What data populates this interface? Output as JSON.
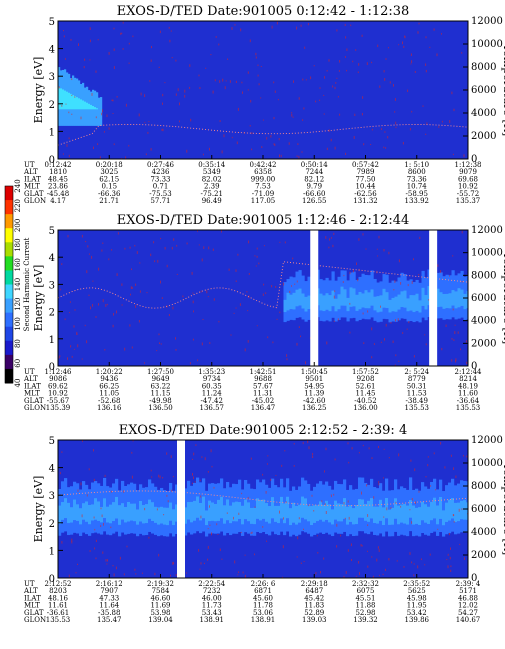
{
  "chart_data": [
    {
      "type": "heatmap",
      "title": "EXOS-D/TED   Date:901005   0:12:42 - 1:12:38",
      "ylabel": "Energy [eV]",
      "y2label": "Temperature [K]",
      "ylim": [
        0,
        5
      ],
      "y2lim": [
        0,
        12000
      ],
      "yticks": [
        "0",
        "1",
        "2",
        "3",
        "4",
        "5"
      ],
      "y2ticks": [
        "0",
        "2000",
        "4000",
        "6000",
        "8000",
        "10000",
        "12000"
      ],
      "gaps": [],
      "bands": [],
      "early_burst": true,
      "rows": [
        {
          "label": "UT",
          "values": [
            "0:12:42",
            "0:20:18",
            "0:27:46",
            "0:35:14",
            "0:42:42",
            "0:50:14",
            "0:57:42",
            "1: 5:10",
            "1:12:38"
          ]
        },
        {
          "label": "ALT",
          "values": [
            "1810",
            "3025",
            "4236",
            "5349",
            "6358",
            "7244",
            "7989",
            "8600",
            "9079"
          ]
        },
        {
          "label": "ILAT",
          "values": [
            "48.45",
            "62.15",
            "73.33",
            "82.02",
            "999.00",
            "82.12",
            "77.50",
            "73.36",
            "69.68"
          ]
        },
        {
          "label": "MLT",
          "values": [
            "23.86",
            "0.15",
            "0.71",
            "2.39",
            "7.53",
            "9.79",
            "10.44",
            "10.74",
            "10.92"
          ]
        },
        {
          "label": "GLAT",
          "values": [
            "-45.48",
            "-66.36",
            "-75.53",
            "-75.21",
            "-71.09",
            "-66.60",
            "-62.56",
            "-58.95",
            "-55.72"
          ]
        },
        {
          "label": "GLON",
          "values": [
            "4.17",
            "21.71",
            "57.71",
            "96.49",
            "117.05",
            "126.55",
            "131.32",
            "133.92",
            "135.37"
          ]
        }
      ]
    },
    {
      "type": "heatmap",
      "title": "EXOS-D/TED   Date:901005   1:12:46 - 2:12:44",
      "ylabel": "Energy [eV]",
      "y2label": "Temperature [K]",
      "ylim": [
        0,
        5
      ],
      "y2lim": [
        0,
        12000
      ],
      "yticks": [
        "0",
        "1",
        "2",
        "3",
        "4",
        "5"
      ],
      "y2ticks": [
        "0",
        "2000",
        "4000",
        "6000",
        "8000",
        "10000",
        "12000"
      ],
      "gaps": [
        0.625,
        0.915
      ],
      "bands": [
        {
          "from": 0.55,
          "to": 1.0,
          "lo": 1.7,
          "hi": 3.3
        }
      ],
      "early_burst": false,
      "rows": [
        {
          "label": "UT",
          "values": [
            "1:12:46",
            "1:20:22",
            "1:27:50",
            "1:35:23",
            "1:42:51",
            "1:50:45",
            "1:57:52",
            "2: 5:24",
            "2:12:44"
          ]
        },
        {
          "label": "ALT",
          "values": [
            "9086",
            "9436",
            "9649",
            "9734",
            "9688",
            "9501",
            "9208",
            "8779",
            "8214"
          ]
        },
        {
          "label": "ILAT",
          "values": [
            "69.62",
            "66.25",
            "63.22",
            "60.35",
            "57.67",
            "54.95",
            "52.61",
            "50.31",
            "48.19"
          ]
        },
        {
          "label": "MLT",
          "values": [
            "10.92",
            "11.05",
            "11.15",
            "11.24",
            "11.31",
            "11.39",
            "11.45",
            "11.53",
            "11.60"
          ]
        },
        {
          "label": "GLAT",
          "values": [
            "-55.67",
            "-52.68",
            "-49.98",
            "-47.42",
            "-45.02",
            "-42.60",
            "-40.52",
            "-38.49",
            "-36.64"
          ]
        },
        {
          "label": "GLON",
          "values": [
            "135.39",
            "136.16",
            "136.50",
            "136.57",
            "136.47",
            "136.25",
            "136.00",
            "135.53",
            "135.53"
          ]
        }
      ]
    },
    {
      "type": "heatmap",
      "title": "EXOS-D/TED   Date:901005   2:12:52 - 2:39: 4",
      "ylabel": "Energy [eV]",
      "y2label": "Temperature [K]",
      "ylim": [
        0,
        5
      ],
      "y2lim": [
        0,
        12000
      ],
      "yticks": [
        "0",
        "1",
        "2",
        "3",
        "4",
        "5"
      ],
      "y2ticks": [
        "0",
        "2000",
        "4000",
        "6000",
        "8000",
        "10000",
        "12000"
      ],
      "gaps": [
        0.3
      ],
      "bands": [
        {
          "from": 0.0,
          "to": 1.0,
          "lo": 1.6,
          "hi": 3.4
        }
      ],
      "early_burst": false,
      "rows": [
        {
          "label": "UT",
          "values": [
            "2:12:52",
            "2:16:12",
            "2:19:32",
            "2:22:54",
            "2:26: 6",
            "2:29:18",
            "2:32:32",
            "2:35:52",
            "2:39: 4"
          ]
        },
        {
          "label": "ALT",
          "values": [
            "8203",
            "7907",
            "7584",
            "7232",
            "6871",
            "6487",
            "6075",
            "5625",
            "5171"
          ]
        },
        {
          "label": "ILAT",
          "values": [
            "48.16",
            "47.33",
            "46.60",
            "46.00",
            "45.60",
            "45.42",
            "45.51",
            "45.98",
            "46.88"
          ]
        },
        {
          "label": "MLT",
          "values": [
            "11.61",
            "11.64",
            "11.69",
            "11.73",
            "11.78",
            "11.83",
            "11.88",
            "11.95",
            "12.02"
          ]
        },
        {
          "label": "GLAT",
          "values": [
            "-36.61",
            "-35.88",
            "53.98",
            "53.43",
            "53.06",
            "52.89",
            "52.98",
            "53.42",
            "54.27"
          ]
        },
        {
          "label": "GLON",
          "values": [
            "135.53",
            "135.47",
            "139.04",
            "138.91",
            "138.91",
            "139.03",
            "139.32",
            "139.86",
            "140.67"
          ]
        }
      ]
    }
  ],
  "colorbar": {
    "label": "Second Harmonic Current",
    "ticks": [
      "40",
      "60",
      "80",
      "100",
      "120",
      "140",
      "160",
      "180",
      "200",
      "220",
      "240"
    ],
    "colors": [
      "#000000",
      "#3a0066",
      "#1a1acc",
      "#1f46e6",
      "#2e6fff",
      "#39a0ff",
      "#3fd6ff",
      "#00d9a0",
      "#22dd22",
      "#aadd00",
      "#ffff00",
      "#ff9a00",
      "#ff3300",
      "#dd0000"
    ]
  },
  "colors": {
    "background": "#1f2fd0",
    "band_mid": "#2e6fff",
    "band_core": "#39a0ff",
    "noise": "#e3231e",
    "temperature_curve": "#ff8a8a",
    "gap": "#ffffff"
  }
}
